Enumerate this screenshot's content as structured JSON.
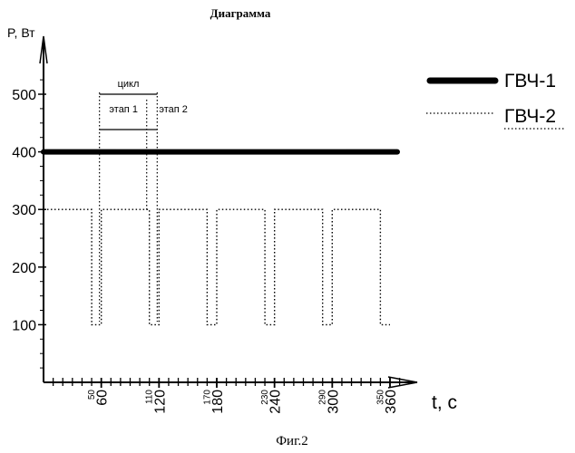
{
  "chart_data": {
    "type": "line",
    "title": "Диаграмма",
    "caption": "Фиг.2",
    "ylabel": "P, Вт",
    "xlabel": "t, с",
    "ylim": [
      0,
      560
    ],
    "xlim": [
      0,
      380
    ],
    "y_ticks": [
      "100",
      "200",
      "300",
      "400",
      "500"
    ],
    "x_ticks_major": [
      "60",
      "120",
      "180",
      "240",
      "300",
      "360"
    ],
    "x_ticks_minor": [
      "50",
      "110",
      "170",
      "230",
      "290",
      "350"
    ],
    "series": [
      {
        "name": "ГВЧ-1",
        "style": "solid-thick",
        "color": "#000000",
        "x": [
          0,
          360
        ],
        "y": [
          400,
          400
        ]
      },
      {
        "name": "ГВЧ-2",
        "style": "dotted",
        "color": "#000000",
        "x": [
          0,
          50,
          50,
          60,
          60,
          110,
          110,
          120,
          120,
          170,
          170,
          180,
          180,
          230,
          230,
          240,
          240,
          290,
          290,
          300,
          300,
          350,
          350,
          360
        ],
        "y": [
          300,
          300,
          100,
          100,
          300,
          300,
          100,
          100,
          300,
          300,
          100,
          100,
          300,
          300,
          100,
          100,
          300,
          300,
          100,
          100,
          300,
          300,
          100,
          100
        ]
      }
    ],
    "annotations": [
      {
        "label": "цикл",
        "x_start": 60,
        "x_end": 120
      },
      {
        "label": "этап 1",
        "x_start": 60,
        "x_end": 110
      },
      {
        "label": "этап 2",
        "x_start": 110,
        "x_end": 120
      }
    ]
  }
}
